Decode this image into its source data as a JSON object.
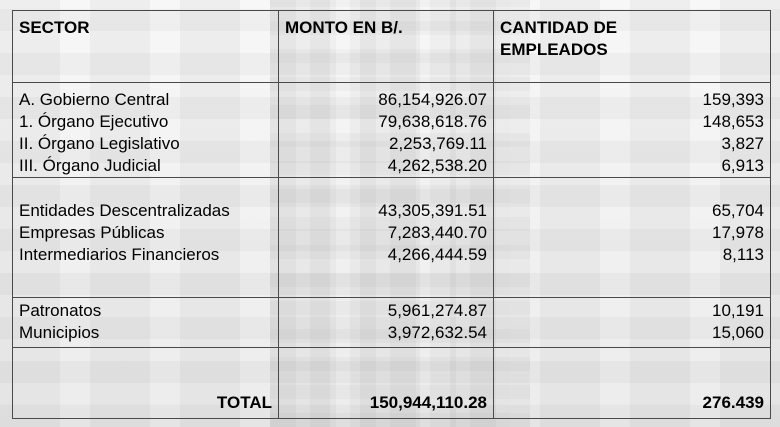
{
  "headers": {
    "sector": "SECTOR",
    "monto": "MONTO EN B/.",
    "cantidad_line1": "CANTIDAD DE",
    "cantidad_line2": "EMPLEADOS"
  },
  "groups": [
    {
      "rows": [
        {
          "sector": "A. Gobierno Central",
          "monto": "86,154,926.07",
          "empleados": "159,393"
        },
        {
          "sector": "1.  Órgano Ejecutivo",
          "monto": "79,638,618.76",
          "empleados": "148,653"
        },
        {
          "sector": "II.  Órgano Legislativo",
          "monto": "2,253,769.11",
          "empleados": "3,827"
        },
        {
          "sector": "III. Órgano Judicial",
          "monto": "4,262,538.20",
          "empleados": "6,913"
        }
      ]
    },
    {
      "rows": [
        {
          "sector": "Entidades Descentralizadas",
          "monto": "43,305,391.51",
          "empleados": "65,704"
        },
        {
          "sector": "Empresas Públicas",
          "monto": "7,283,440.70",
          "empleados": "17,978"
        },
        {
          "sector": "Intermediarios Financieros",
          "monto": "4,266,444.59",
          "empleados": "8,113"
        }
      ]
    },
    {
      "rows": [
        {
          "sector": "Patronatos",
          "monto": "5,961,274.87",
          "empleados": "10,191"
        },
        {
          "sector": "Municipios",
          "monto": "3,972,632.54",
          "empleados": "15,060"
        }
      ]
    }
  ],
  "total": {
    "label": "TOTAL",
    "monto": "150,944,110.28",
    "empleados": "276.439"
  }
}
